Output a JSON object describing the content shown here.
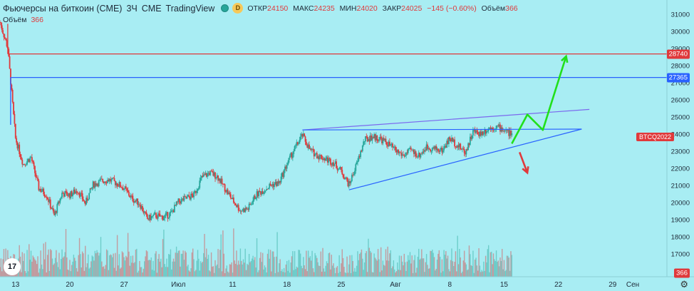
{
  "header": {
    "title": "Фьючерсы на биткоин (CME)",
    "interval": "3Ч",
    "exchange": "CME",
    "source": "TradingView",
    "d_badge": "D",
    "open_label": "ОТКР",
    "open": "24150",
    "high_label": "МАКС",
    "high": "24235",
    "low_label": "МИН",
    "low": "24020",
    "close_label": "ЗАКР",
    "close": "24025",
    "change": "−145 (−0.60%)",
    "volume_label": "Объём",
    "volume": "366"
  },
  "volume_row": {
    "label": "Объём",
    "value": "366"
  },
  "y_ticks": [
    "31000",
    "30000",
    "29000",
    "28000",
    "27000",
    "26000",
    "25000",
    "24000",
    "23000",
    "22000",
    "21000",
    "20000",
    "19000",
    "18000",
    "17000"
  ],
  "x_ticks": [
    "13",
    "20",
    "27",
    "Июл",
    "11",
    "18",
    "25",
    "Авг",
    "8",
    "15",
    "22",
    "29",
    "Сен"
  ],
  "tags": {
    "level_red": "28740",
    "level_blue": "27365",
    "symbol": "BTCQ2022",
    "volume_last": "366"
  },
  "logo": "17",
  "colors": {
    "background": "#a8edf3",
    "up": "#26a69a",
    "down": "#e0393b",
    "red_line": "#e0393b",
    "blue_line": "#2962ff",
    "wedge_line": "#7b68ee",
    "arrow_up": "#21e01b",
    "arrow_down": "#e0393b"
  },
  "chart_data": {
    "type": "candlestick",
    "ylim": [
      16600,
      31100
    ],
    "x_range": [
      "2022-06-11",
      "2022-09-05"
    ],
    "close_path": [
      [
        "2022-06-11",
        30600
      ],
      [
        "2022-06-12",
        29100
      ],
      [
        "2022-06-13",
        23800
      ],
      [
        "2022-06-14",
        22300
      ],
      [
        "2022-06-15",
        22700
      ],
      [
        "2022-06-16",
        20900
      ],
      [
        "2022-06-17",
        20500
      ],
      [
        "2022-06-18",
        19300
      ],
      [
        "2022-06-19",
        20600
      ],
      [
        "2022-06-20",
        20500
      ],
      [
        "2022-06-21",
        20800
      ],
      [
        "2022-06-22",
        20000
      ],
      [
        "2022-06-23",
        21100
      ],
      [
        "2022-06-24",
        21300
      ],
      [
        "2022-06-25",
        21400
      ],
      [
        "2022-06-26",
        21200
      ],
      [
        "2022-06-27",
        20900
      ],
      [
        "2022-06-28",
        20300
      ],
      [
        "2022-06-29",
        20000
      ],
      [
        "2022-06-30",
        19100
      ],
      [
        "2022-07-01",
        19300
      ],
      [
        "2022-07-02",
        19200
      ],
      [
        "2022-07-03",
        19400
      ],
      [
        "2022-07-04",
        20100
      ],
      [
        "2022-07-05",
        20300
      ],
      [
        "2022-07-06",
        20500
      ],
      [
        "2022-07-07",
        21500
      ],
      [
        "2022-07-08",
        21800
      ],
      [
        "2022-07-09",
        21600
      ],
      [
        "2022-07-10",
        20900
      ],
      [
        "2022-07-11",
        20200
      ],
      [
        "2022-07-12",
        19600
      ],
      [
        "2022-07-13",
        19700
      ],
      [
        "2022-07-14",
        20500
      ],
      [
        "2022-07-15",
        20800
      ],
      [
        "2022-07-16",
        21100
      ],
      [
        "2022-07-17",
        21200
      ],
      [
        "2022-07-18",
        22300
      ],
      [
        "2022-07-19",
        23200
      ],
      [
        "2022-07-20",
        24000
      ],
      [
        "2022-07-21",
        23100
      ],
      [
        "2022-07-22",
        22800
      ],
      [
        "2022-07-23",
        22600
      ],
      [
        "2022-07-24",
        22400
      ],
      [
        "2022-07-25",
        21900
      ],
      [
        "2022-07-26",
        21100
      ],
      [
        "2022-07-27",
        22300
      ],
      [
        "2022-07-28",
        23700
      ],
      [
        "2022-07-29",
        23900
      ],
      [
        "2022-07-30",
        23800
      ],
      [
        "2022-07-31",
        23500
      ],
      [
        "2022-08-01",
        23100
      ],
      [
        "2022-08-02",
        22800
      ],
      [
        "2022-08-03",
        23100
      ],
      [
        "2022-08-04",
        22800
      ],
      [
        "2022-08-05",
        23300
      ],
      [
        "2022-08-06",
        23200
      ],
      [
        "2022-08-07",
        23100
      ],
      [
        "2022-08-08",
        23800
      ],
      [
        "2022-08-09",
        23400
      ],
      [
        "2022-08-10",
        23000
      ],
      [
        "2022-08-11",
        24200
      ],
      [
        "2022-08-12",
        24100
      ],
      [
        "2022-08-13",
        24400
      ],
      [
        "2022-08-14",
        24500
      ],
      [
        "2022-08-15",
        24300
      ],
      [
        "2022-08-16",
        24025
      ]
    ],
    "horizontal_levels": [
      28740,
      27365
    ],
    "trendlines": {
      "wedge_upper": [
        [
          "2022-07-20",
          24300
        ],
        [
          "2022-08-26",
          25500
        ]
      ],
      "resistance": [
        [
          "2022-07-20",
          24300
        ],
        [
          "2022-08-25",
          24350
        ]
      ],
      "wedge_lower": [
        [
          "2022-07-26",
          20800
        ],
        [
          "2022-08-25",
          24350
        ]
      ]
    },
    "arrows": {
      "up": [
        [
          "2022-08-16",
          23500
        ],
        [
          "2022-08-18",
          25200
        ],
        [
          "2022-08-20",
          24300
        ],
        [
          "2022-08-23",
          28600
        ]
      ],
      "down": [
        [
          "2022-08-17",
          23000
        ],
        [
          "2022-08-18",
          21800
        ]
      ]
    }
  }
}
